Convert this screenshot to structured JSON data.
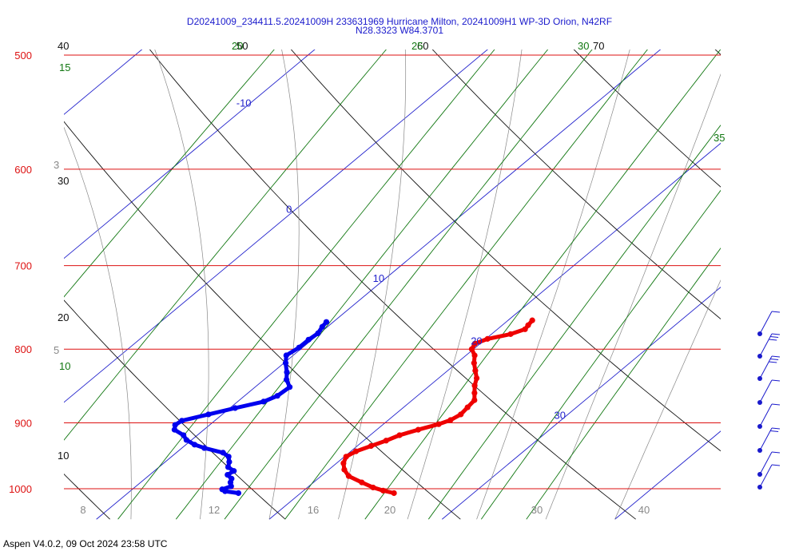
{
  "header": {
    "line1": "D20241009_234411.5.20241009H 233631969 Hurricane Milton, 20241009H1 WP-3D Orion, N42RF",
    "line2": "N28.3323 W84.3701"
  },
  "footer": {
    "text": "Aspen V4.0.2, 09 Oct 2024  23:58 UTC"
  },
  "colors": {
    "isobar": "#dd1111",
    "isotherm": "#2222cc",
    "dry_adiabat": "#111111",
    "moist_adiabat": "#888888",
    "mixing_ratio": "#117711",
    "temperature": "#ee0000",
    "dewpoint": "#0000ee",
    "wind_barb": "#1a1acc"
  },
  "chart_data": {
    "type": "skew-t",
    "pressure_range_hPa": [
      1000,
      500
    ],
    "temperature_range_at_1000hPa_C": [
      6,
      44
    ],
    "isobars_hPa": [
      500,
      600,
      700,
      800,
      900,
      1000
    ],
    "pressure_labels": [
      "500",
      "600",
      "700",
      "800",
      "900",
      "1000"
    ],
    "isotherms_C": [
      -10,
      0,
      10,
      20,
      30
    ],
    "isotherm_labels": [
      "-10",
      "0",
      "10",
      "20",
      "30"
    ],
    "bottom_temperature_labels": [
      "8",
      "12",
      "16",
      "20",
      "30",
      "40"
    ],
    "dry_adiabat_labels": [
      "10",
      "20",
      "30",
      "40",
      "50",
      "60",
      "70"
    ],
    "mixing_ratio_labels": [
      "10",
      "15",
      "20",
      "25",
      "30",
      "35"
    ],
    "moist_side_labels": [
      "3",
      "5"
    ],
    "temperature_C": [
      [
        1007,
        25.4
      ],
      [
        1003,
        24.6
      ],
      [
        998,
        23.8
      ],
      [
        990,
        22.8
      ],
      [
        980,
        21.6
      ],
      [
        970,
        20.9
      ],
      [
        960,
        20.4
      ],
      [
        950,
        20.1
      ],
      [
        942,
        20.3
      ],
      [
        934,
        20.8
      ],
      [
        926,
        21.3
      ],
      [
        918,
        21.7
      ],
      [
        910,
        22.4
      ],
      [
        902,
        23.2
      ],
      [
        896,
        23.6
      ],
      [
        888,
        23.8
      ],
      [
        878,
        23.7
      ],
      [
        868,
        23.6
      ],
      [
        858,
        23.1
      ],
      [
        848,
        22.6
      ],
      [
        838,
        22.2
      ],
      [
        828,
        21.6
      ],
      [
        818,
        21.0
      ],
      [
        808,
        20.5
      ],
      [
        800,
        19.9
      ],
      [
        793,
        19.7
      ],
      [
        787,
        20.1
      ],
      [
        781,
        21.1
      ],
      [
        775,
        21.6
      ],
      [
        770,
        21.5
      ],
      [
        764,
        21.4
      ]
    ],
    "dewpoint_C": [
      [
        1007,
        16.4
      ],
      [
        1004,
        15.5
      ],
      [
        1001,
        15.2
      ],
      [
        996,
        15.5
      ],
      [
        990,
        15.2
      ],
      [
        984,
        15.0
      ],
      [
        978,
        14.5
      ],
      [
        972,
        14.6
      ],
      [
        966,
        14.0
      ],
      [
        958,
        13.7
      ],
      [
        950,
        13.3
      ],
      [
        944,
        12.7
      ],
      [
        937,
        11.3
      ],
      [
        932,
        10.5
      ],
      [
        925,
        9.7
      ],
      [
        918,
        9.2
      ],
      [
        910,
        8.3
      ],
      [
        903,
        8.0
      ],
      [
        897,
        8.1
      ],
      [
        888,
        9.2
      ],
      [
        879,
        10.3
      ],
      [
        870,
        11.5
      ],
      [
        862,
        11.9
      ],
      [
        850,
        12.0
      ],
      [
        840,
        11.3
      ],
      [
        830,
        10.8
      ],
      [
        818,
        10.1
      ],
      [
        808,
        9.6
      ],
      [
        798,
        9.8
      ],
      [
        788,
        9.8
      ],
      [
        780,
        9.9
      ],
      [
        772,
        9.7
      ],
      [
        766,
        9.6
      ]
    ]
  }
}
